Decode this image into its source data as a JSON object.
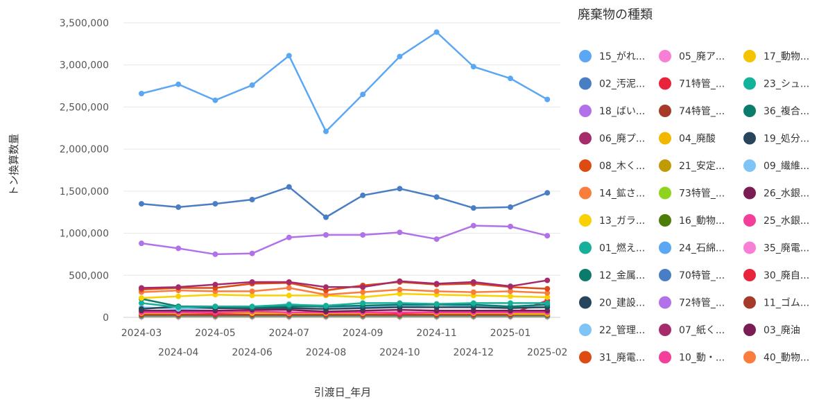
{
  "chart_data": {
    "type": "line",
    "xlabel": "引渡日_年月",
    "ylabel": "トン換算数量",
    "ylim": [
      0,
      3500000
    ],
    "y_ticks": [
      0,
      500000,
      1000000,
      1500000,
      2000000,
      2500000,
      3000000,
      3500000
    ],
    "y_tick_labels": [
      "0",
      "500,000",
      "1,000,000",
      "1,500,000",
      "2,000,000",
      "2,500,000",
      "3,000,000",
      "3,500,000"
    ],
    "categories": [
      "2024-03",
      "2024-04",
      "2024-05",
      "2024-06",
      "2024-07",
      "2024-08",
      "2024-09",
      "2024-10",
      "2024-11",
      "2024-12",
      "2025-01",
      "2025-02"
    ],
    "grid": true,
    "legend": {
      "title": "廃棄物の種類",
      "placement": "right",
      "entries": [
        {
          "label": "15_がれ...",
          "color": "#5ba7f4"
        },
        {
          "label": "05_廃ア...",
          "color": "#f77fd6"
        },
        {
          "label": "17_動物...",
          "color": "#f5c300"
        },
        {
          "label": "02_汚泥...",
          "color": "#4a7ec4"
        },
        {
          "label": "71特管_...",
          "color": "#e8233c"
        },
        {
          "label": "23_シュ...",
          "color": "#12b39a"
        },
        {
          "label": "18_ばい...",
          "color": "#b171e8"
        },
        {
          "label": "74特管_...",
          "color": "#a53a2a"
        },
        {
          "label": "36_複合...",
          "color": "#0b7b6b"
        },
        {
          "label": "06_廃プ...",
          "color": "#a52b6b"
        },
        {
          "label": "04_廃酸",
          "color": "#f2b800"
        },
        {
          "label": "19_処分...",
          "color": "#27465c"
        },
        {
          "label": "08_木く...",
          "color": "#dd4a12"
        },
        {
          "label": "21_安定...",
          "color": "#c29a05"
        },
        {
          "label": "09_繊維...",
          "color": "#7fc4f6"
        },
        {
          "label": "14_鉱さ...",
          "color": "#f97d3d"
        },
        {
          "label": "73特管_...",
          "color": "#8fd31f"
        },
        {
          "label": "26_水銀...",
          "color": "#7b1d55"
        },
        {
          "label": "13_ガラ...",
          "color": "#f9d100"
        },
        {
          "label": "16_動物...",
          "color": "#4e7d07"
        },
        {
          "label": "25_水銀...",
          "color": "#f33f9a"
        },
        {
          "label": "01_燃え...",
          "color": "#16b09a"
        },
        {
          "label": "24_石綿...",
          "color": "#5ba7f4"
        },
        {
          "label": "35_廃電...",
          "color": "#f77fd6"
        },
        {
          "label": "12_金属...",
          "color": "#0b7b6b"
        },
        {
          "label": "70特管_...",
          "color": "#4a7ec4"
        },
        {
          "label": "30_廃自...",
          "color": "#e8233c"
        },
        {
          "label": "20_建設...",
          "color": "#27465c"
        },
        {
          "label": "72特管_...",
          "color": "#b171e8"
        },
        {
          "label": "11_ゴム...",
          "color": "#a53a2a"
        },
        {
          "label": "22_管理...",
          "color": "#7fc4f6"
        },
        {
          "label": "07_紙く...",
          "color": "#a52b6b"
        },
        {
          "label": "03_廃油",
          "color": "#7b1d55"
        },
        {
          "label": "31_廃電...",
          "color": "#dd4a12"
        },
        {
          "label": "10_動・...",
          "color": "#f33f9a"
        },
        {
          "label": "40_動物...",
          "color": "#f97d3d"
        }
      ]
    },
    "series": [
      {
        "name": "15_がれ...",
        "color": "#5ba7f4",
        "values": [
          2660000,
          2770000,
          2580000,
          2760000,
          3110000,
          2210000,
          2650000,
          3100000,
          3390000,
          2980000,
          2840000,
          2590000
        ]
      },
      {
        "name": "02_汚泥...",
        "color": "#4a7ec4",
        "values": [
          1350000,
          1310000,
          1350000,
          1400000,
          1550000,
          1190000,
          1450000,
          1530000,
          1430000,
          1300000,
          1310000,
          1480000
        ]
      },
      {
        "name": "18_ばい...",
        "color": "#b171e8",
        "values": [
          880000,
          820000,
          750000,
          760000,
          950000,
          980000,
          980000,
          1010000,
          930000,
          1090000,
          1080000,
          970000
        ]
      },
      {
        "name": "06_廃プ...",
        "color": "#a52b6b",
        "values": [
          350000,
          360000,
          390000,
          420000,
          420000,
          360000,
          360000,
          430000,
          400000,
          420000,
          370000,
          440000
        ]
      },
      {
        "name": "08_木く...",
        "color": "#dd4a12",
        "values": [
          330000,
          350000,
          350000,
          400000,
          410000,
          320000,
          380000,
          420000,
          390000,
          400000,
          360000,
          340000
        ]
      },
      {
        "name": "14_鉱さ...",
        "color": "#f97d3d",
        "values": [
          300000,
          320000,
          310000,
          310000,
          350000,
          270000,
          300000,
          330000,
          310000,
          300000,
          310000,
          290000
        ]
      },
      {
        "name": "13_ガラ...",
        "color": "#f9d100",
        "values": [
          230000,
          250000,
          270000,
          260000,
          260000,
          260000,
          240000,
          280000,
          270000,
          260000,
          250000,
          240000
        ]
      },
      {
        "name": "01_燃え...",
        "color": "#16b09a",
        "values": [
          170000,
          120000,
          130000,
          130000,
          150000,
          140000,
          170000,
          170000,
          160000,
          170000,
          170000,
          170000
        ]
      },
      {
        "name": "12_金属...",
        "color": "#0b7b6b",
        "values": [
          220000,
          130000,
          130000,
          120000,
          130000,
          130000,
          140000,
          150000,
          150000,
          150000,
          130000,
          150000
        ]
      },
      {
        "name": "20_建設...",
        "color": "#27465c",
        "values": [
          100000,
          130000,
          110000,
          110000,
          110000,
          100000,
          110000,
          120000,
          120000,
          120000,
          110000,
          120000
        ]
      },
      {
        "name": "22_管理...",
        "color": "#7fc4f6",
        "values": [
          120000,
          100000,
          110000,
          110000,
          160000,
          120000,
          130000,
          140000,
          120000,
          140000,
          120000,
          120000
        ]
      },
      {
        "name": "03_廃油",
        "color": "#7b1d55",
        "values": [
          80000,
          80000,
          80000,
          90000,
          90000,
          70000,
          80000,
          90000,
          80000,
          80000,
          80000,
          80000
        ]
      },
      {
        "name": "10_動・...",
        "color": "#f33f9a",
        "values": [
          60000,
          60000,
          60000,
          70000,
          60000,
          60000,
          60000,
          60000,
          60000,
          60000,
          60000,
          60000
        ]
      },
      {
        "name": "17_動物...",
        "color": "#f5c300",
        "values": [
          50000,
          50000,
          60000,
          50000,
          50000,
          50000,
          50000,
          60000,
          50000,
          50000,
          50000,
          70000
        ]
      },
      {
        "name": "71特管_...",
        "color": "#e8233c",
        "values": [
          40000,
          40000,
          40000,
          40000,
          40000,
          40000,
          40000,
          40000,
          40000,
          40000,
          40000,
          200000
        ]
      },
      {
        "name": "04_廃酸",
        "color": "#f2b800",
        "values": [
          40000,
          40000,
          40000,
          40000,
          40000,
          40000,
          40000,
          40000,
          40000,
          40000,
          40000,
          40000
        ]
      },
      {
        "name": "74特管_...",
        "color": "#a53a2a",
        "values": [
          30000,
          30000,
          30000,
          30000,
          30000,
          30000,
          30000,
          30000,
          30000,
          30000,
          30000,
          30000
        ]
      },
      {
        "name": "23_シュ...",
        "color": "#12b39a",
        "values": [
          20000,
          20000,
          20000,
          20000,
          20000,
          20000,
          20000,
          20000,
          20000,
          20000,
          20000,
          20000
        ]
      },
      {
        "name": "21_安定...",
        "color": "#c29a05",
        "values": [
          15000,
          15000,
          15000,
          15000,
          15000,
          15000,
          15000,
          15000,
          15000,
          15000,
          15000,
          15000
        ]
      },
      {
        "name": "05_廃ア...",
        "color": "#f77fd6",
        "values": [
          10000,
          10000,
          10000,
          10000,
          10000,
          10000,
          10000,
          10000,
          10000,
          10000,
          10000,
          10000
        ]
      },
      {
        "name": "07_紙く...",
        "color": "#a52b6b",
        "values": [
          10000,
          10000,
          10000,
          10000,
          10000,
          10000,
          10000,
          10000,
          10000,
          10000,
          10000,
          10000
        ]
      },
      {
        "name": "31_廃電...",
        "color": "#dd4a12",
        "values": [
          8000,
          8000,
          8000,
          8000,
          8000,
          8000,
          8000,
          8000,
          8000,
          8000,
          8000,
          8000
        ]
      }
    ]
  }
}
